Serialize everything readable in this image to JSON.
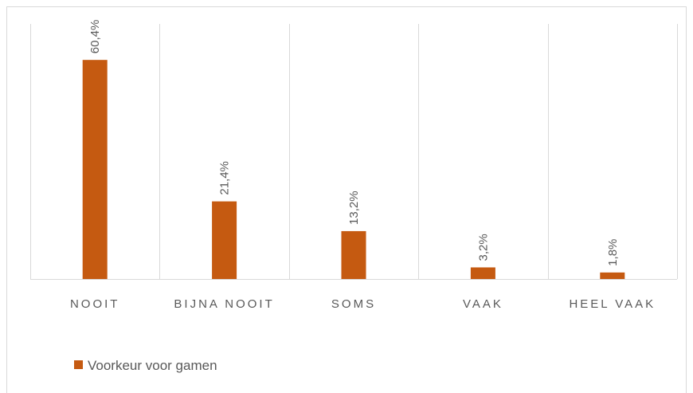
{
  "chart_data": {
    "type": "bar",
    "categories": [
      "NOOIT",
      "BIJNA NOOIT",
      "SOMS",
      "VAAK",
      "HEEL VAAK"
    ],
    "series": [
      {
        "name": "Voorkeur voor gamen",
        "color": "#c55a11",
        "values": [
          60.4,
          21.4,
          13.2,
          3.2,
          1.8
        ],
        "value_labels": [
          "60,4%",
          "21,4%",
          "13,2%",
          "3,2%",
          "1,8%"
        ]
      }
    ]
  }
}
